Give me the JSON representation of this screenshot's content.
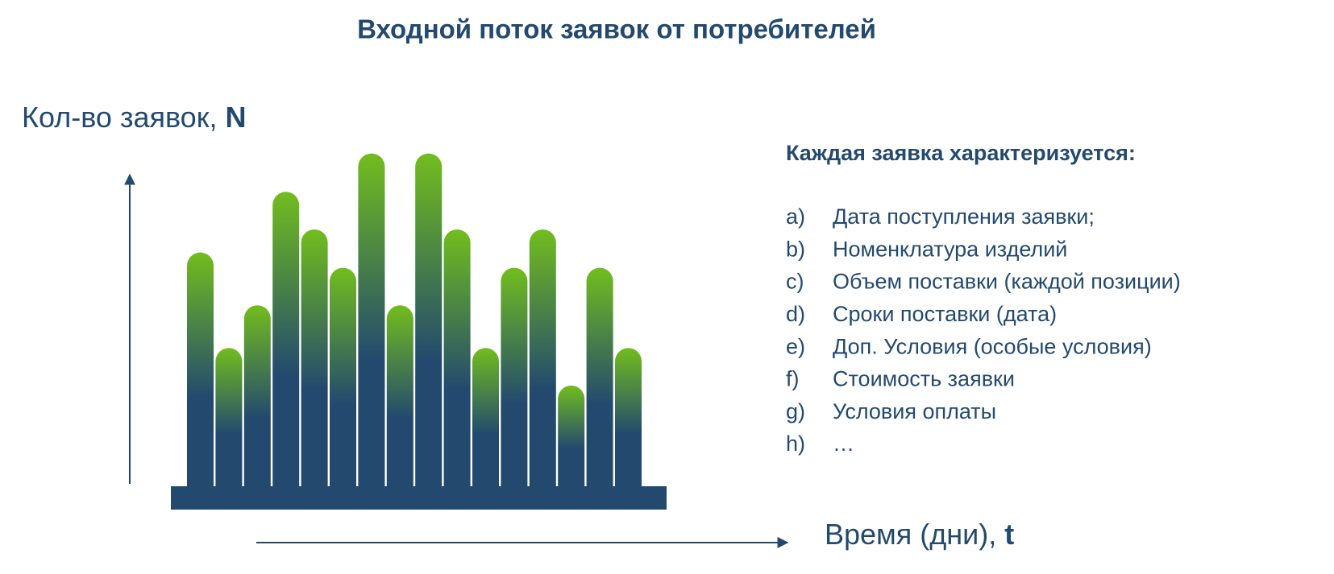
{
  "chart_data": {
    "type": "bar",
    "title": "Входной поток заявок от потребителей",
    "y_label": "Кол-во заявок,",
    "y_symbol": "N",
    "x_label": "Время (дни),",
    "x_symbol": "t",
    "values": [
      274,
      162,
      212,
      345,
      301,
      256,
      390,
      212,
      390,
      301,
      162,
      256,
      301,
      118,
      256,
      162
    ],
    "ylim": [
      0,
      400
    ],
    "color_top": "#72bd1e",
    "color_bottom": "#234a6e"
  },
  "panel": {
    "heading": "Каждая заявка характеризуется:",
    "items": [
      {
        "marker": "a)",
        "text": "Дата поступления заявки;"
      },
      {
        "marker": "b)",
        "text": "Номенклатура изделий"
      },
      {
        "marker": "c)",
        "text": "Объем поставки (каждой позиции)"
      },
      {
        "marker": "d)",
        "text": "Сроки поставки (дата)"
      },
      {
        "marker": "e)",
        "text": "Доп. Условия (особые условия)"
      },
      {
        "marker": "f)",
        "text": "Стоимость заявки"
      },
      {
        "marker": "g)",
        "text": "Условия оплаты"
      },
      {
        "marker": "h)",
        "text": "…"
      }
    ]
  }
}
